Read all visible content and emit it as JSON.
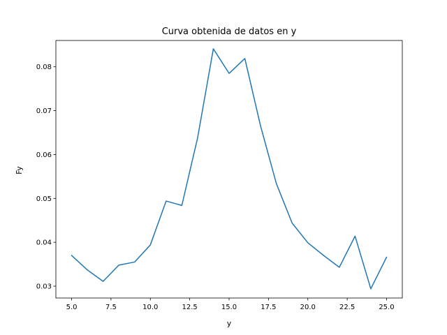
{
  "chart_data": {
    "type": "line",
    "title": "Curva obtenida de datos en y",
    "xlabel": "y",
    "ylabel": "Fy",
    "grid": false,
    "xlim": [
      4.0,
      26.0
    ],
    "ylim": [
      0.0273,
      0.086
    ],
    "xticks": [
      5.0,
      7.5,
      10.0,
      12.5,
      15.0,
      17.5,
      20.0,
      22.5,
      25.0
    ],
    "xtick_labels": [
      "5.0",
      "7.5",
      "10.0",
      "12.5",
      "15.0",
      "17.5",
      "20.0",
      "22.5",
      "25.0"
    ],
    "yticks": [
      0.03,
      0.04,
      0.05,
      0.06,
      0.07,
      0.08
    ],
    "ytick_labels": [
      "0.03",
      "0.04",
      "0.05",
      "0.06",
      "0.07",
      "0.08"
    ],
    "series": [
      {
        "color": "#1f77b4",
        "x": [
          5,
          6,
          7,
          8,
          9,
          10,
          11,
          12,
          13,
          14,
          15,
          16,
          17,
          18,
          19,
          20,
          21,
          22,
          23,
          24,
          25
        ],
        "values": [
          0.037,
          0.0337,
          0.0311,
          0.0348,
          0.0355,
          0.0394,
          0.0494,
          0.0484,
          0.0638,
          0.0841,
          0.0785,
          0.0819,
          0.0665,
          0.0534,
          0.0444,
          0.0399,
          0.037,
          0.0343,
          0.0414,
          0.0294,
          0.0366
        ]
      }
    ]
  }
}
